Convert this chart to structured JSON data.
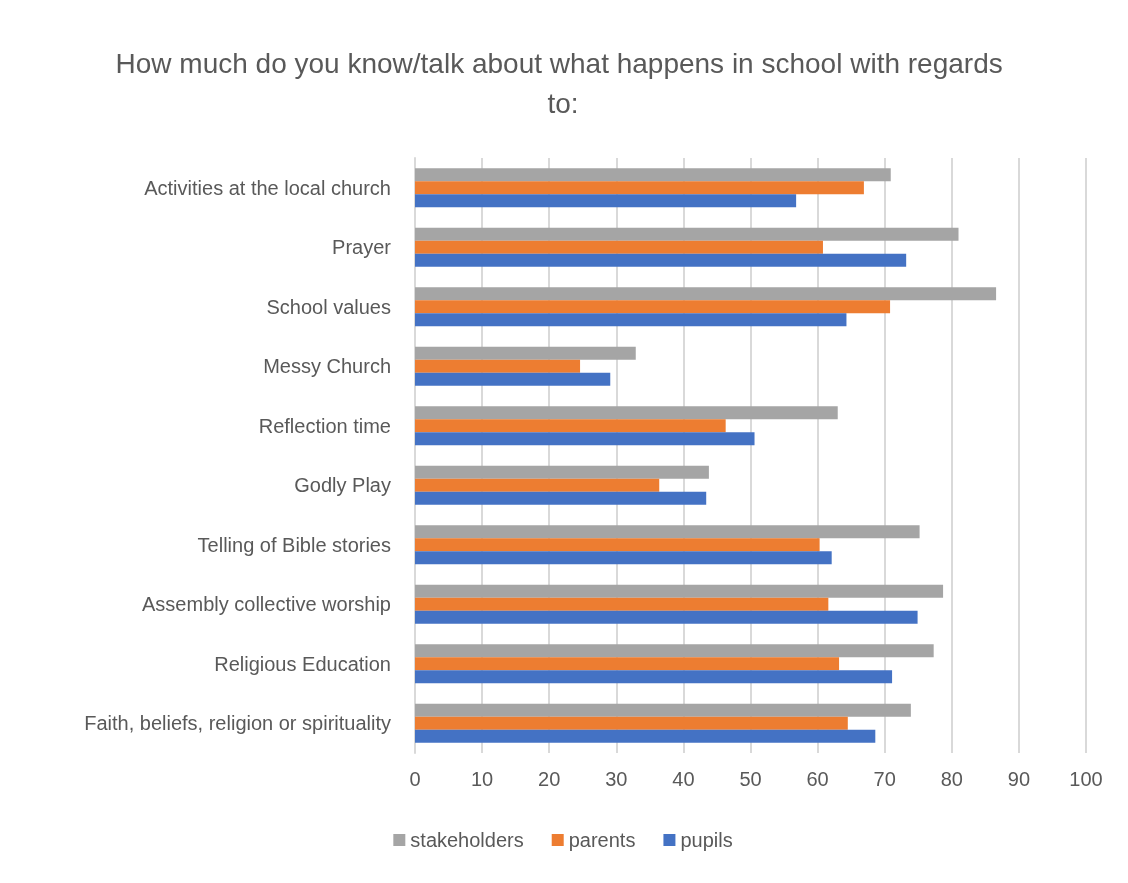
{
  "chart_data": {
    "type": "bar",
    "orientation": "horizontal",
    "title": "How much do you know/talk about what happens in school with regards to:",
    "categories": [
      "Activities at the local church",
      "Prayer",
      "School values",
      "Messy Church",
      "Reflection time",
      "Godly Play",
      "Telling of Bible stories",
      "Assembly collective worship",
      "Religious Education",
      "Faith, beliefs, religion or spirituality"
    ],
    "series": [
      {
        "name": "stakeholders",
        "color": "#a5a5a5",
        "values": [
          70.9,
          81.0,
          86.6,
          32.9,
          63.0,
          43.8,
          75.2,
          78.7,
          77.3,
          73.9
        ]
      },
      {
        "name": "parents",
        "color": "#ed7d31",
        "values": [
          66.9,
          60.8,
          70.8,
          24.6,
          46.3,
          36.4,
          60.3,
          61.6,
          63.2,
          64.5
        ]
      },
      {
        "name": "pupils",
        "color": "#4472c4",
        "values": [
          56.8,
          73.2,
          64.3,
          29.1,
          50.6,
          43.4,
          62.1,
          74.9,
          71.1,
          68.6
        ]
      }
    ],
    "xlim": [
      0,
      100
    ],
    "xticks": [
      0,
      10,
      20,
      30,
      40,
      50,
      60,
      70,
      80,
      90,
      100
    ],
    "grid": "x",
    "legend": "bottom"
  }
}
